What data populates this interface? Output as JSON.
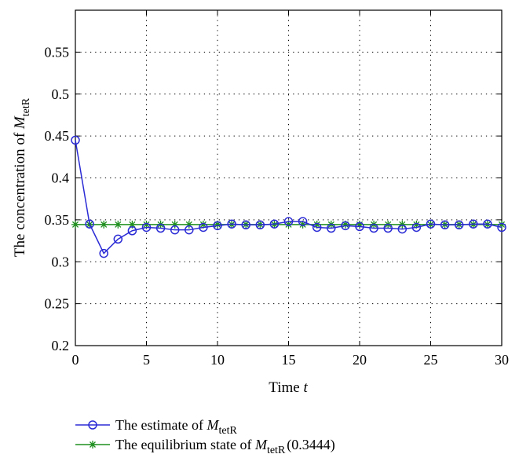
{
  "chart_data": {
    "type": "line",
    "xlabel": "Time",
    "xlabel_var": "t",
    "ylabel": "The concentration of",
    "ylabel_var": "M",
    "ylabel_sub": "tetR",
    "xlim": [
      0,
      30
    ],
    "ylim": [
      0.2,
      0.6
    ],
    "xticks": [
      "0",
      "5",
      "10",
      "15",
      "20",
      "25",
      "30"
    ],
    "yticks": [
      "0.2",
      "0.25",
      "0.3",
      "0.35",
      "0.4",
      "0.45",
      "0.5",
      "0.55"
    ],
    "grid": true,
    "legend_position": "below-plot",
    "x": [
      0,
      1,
      2,
      3,
      4,
      5,
      6,
      7,
      8,
      9,
      10,
      11,
      12,
      13,
      14,
      15,
      16,
      17,
      18,
      19,
      20,
      21,
      22,
      23,
      24,
      25,
      26,
      27,
      28,
      29,
      30
    ],
    "series": [
      {
        "legend_text": "The estimate of",
        "legend_var": "M",
        "legend_sub": "tetR",
        "legend_suffix": "",
        "color": "#2b2bd6",
        "marker": "circle",
        "values": [
          0.445,
          0.345,
          0.31,
          0.327,
          0.337,
          0.341,
          0.34,
          0.338,
          0.338,
          0.341,
          0.343,
          0.345,
          0.344,
          0.344,
          0.345,
          0.348,
          0.348,
          0.341,
          0.34,
          0.343,
          0.342,
          0.34,
          0.34,
          0.339,
          0.341,
          0.345,
          0.344,
          0.344,
          0.345,
          0.345,
          0.341
        ]
      },
      {
        "legend_text": "The equilibrium state of",
        "legend_var": "M",
        "legend_sub": "tetR",
        "legend_suffix": "(0.3444)",
        "color": "#1f8f1f",
        "marker": "star",
        "values": [
          0.3444,
          0.3444,
          0.3444,
          0.3444,
          0.3444,
          0.3444,
          0.3444,
          0.3444,
          0.3444,
          0.3444,
          0.3444,
          0.3444,
          0.3444,
          0.3444,
          0.3444,
          0.3444,
          0.3444,
          0.3444,
          0.3444,
          0.3444,
          0.3444,
          0.3444,
          0.3444,
          0.3444,
          0.3444,
          0.3444,
          0.3444,
          0.3444,
          0.3444,
          0.3444,
          0.3444
        ]
      }
    ]
  }
}
